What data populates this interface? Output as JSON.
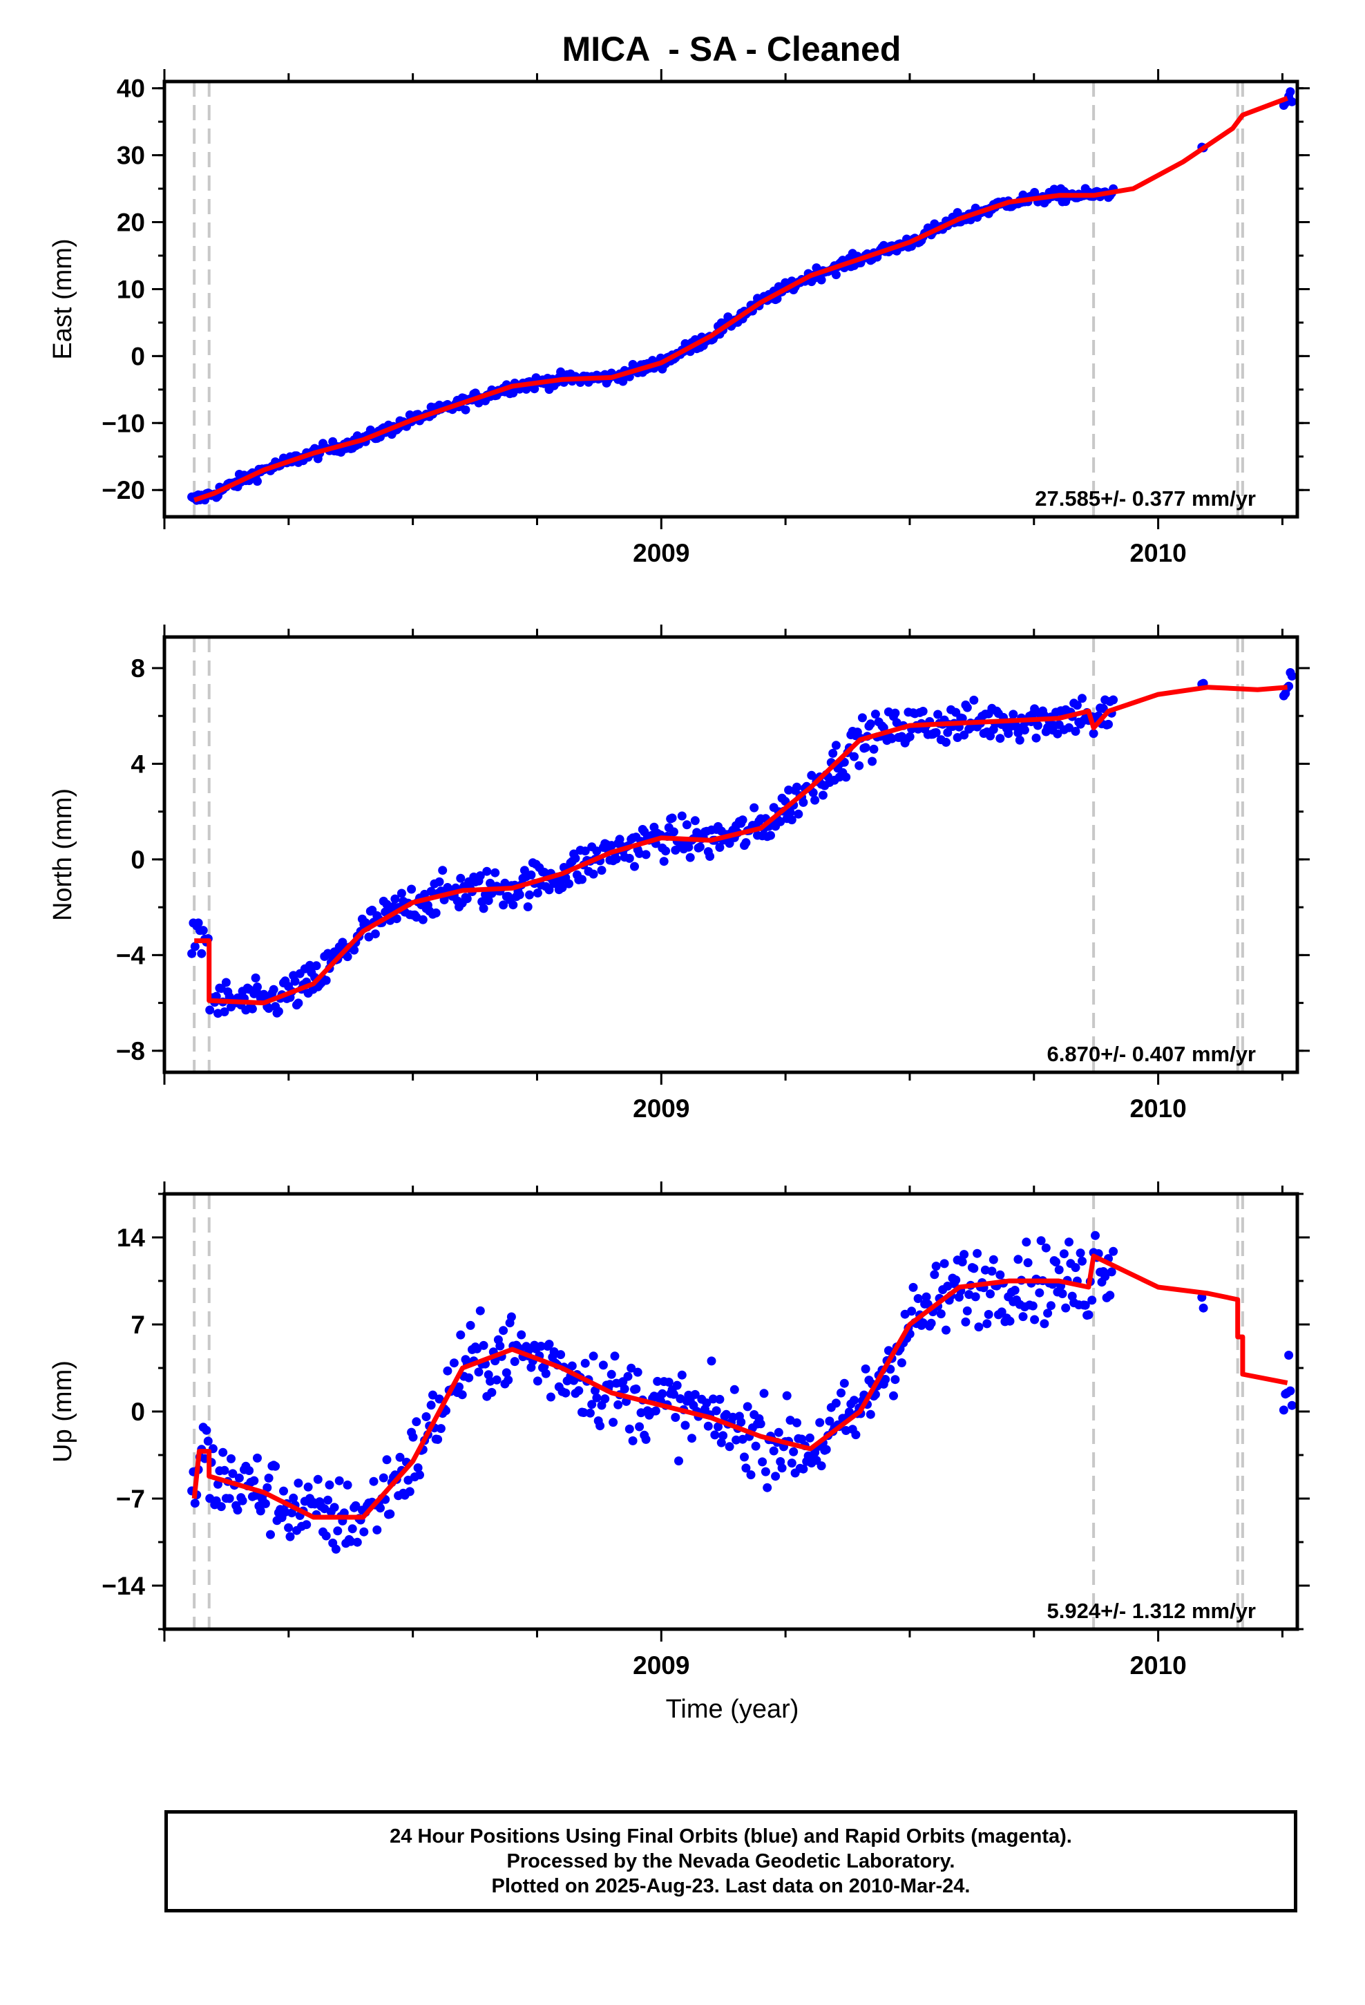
{
  "figure": {
    "title": "MICA  - SA - Cleaned",
    "footer": [
      "24 Hour Positions Using Final Orbits (blue) and Rapid Orbits (magenta).",
      "Processed by the Nevada Geodetic Laboratory.",
      "Plotted on 2025-Aug-23. Last data on 2010-Mar-24."
    ],
    "colors": {
      "data_points": "#0000ff",
      "model_line": "#ff0000",
      "event_lines": "#c8c8c8",
      "frame": "#000000"
    }
  },
  "chart_data": [
    {
      "type": "scatter",
      "component": "east",
      "ylabel": "East (mm)",
      "xlabel": "",
      "xlim": [
        2008.0,
        2010.28
      ],
      "ylim": [
        -24,
        41
      ],
      "yticks": [
        -20,
        -10,
        0,
        10,
        20,
        30,
        40
      ],
      "xticks": [
        2009,
        2010
      ],
      "rate": "27.585+/- 0.377 mm/yr",
      "event_lines": [
        2008.06,
        2008.09,
        2009.87,
        2010.16,
        2010.17
      ],
      "model": {
        "x": [
          2008.06,
          2008.1,
          2008.2,
          2008.3,
          2008.4,
          2008.5,
          2008.6,
          2008.7,
          2008.8,
          2008.9,
          2009.0,
          2009.1,
          2009.2,
          2009.3,
          2009.4,
          2009.5,
          2009.6,
          2009.7,
          2009.8,
          2009.87,
          2009.95,
          2010.05,
          2010.15,
          2010.17,
          2010.26
        ],
        "y": [
          -21.5,
          -20.5,
          -17,
          -14.5,
          -12.5,
          -9.5,
          -7,
          -4.5,
          -3.5,
          -3.2,
          -1,
          3,
          8,
          12,
          14.5,
          17,
          20.5,
          23,
          24,
          24,
          25,
          29,
          34,
          36,
          38.5
        ]
      },
      "noise": 0.9
    },
    {
      "type": "scatter",
      "component": "north",
      "ylabel": "North (mm)",
      "xlabel": "",
      "xlim": [
        2008.0,
        2010.28
      ],
      "ylim": [
        -8.9,
        9.3
      ],
      "yticks": [
        -8,
        -4,
        0,
        4,
        8
      ],
      "xticks": [
        2009,
        2010
      ],
      "rate": "6.870+/- 0.407 mm/yr",
      "event_lines": [
        2008.06,
        2008.09,
        2009.87,
        2010.16,
        2010.17
      ],
      "model": {
        "x": [
          2008.06,
          2008.09,
          2008.09,
          2008.2,
          2008.3,
          2008.4,
          2008.5,
          2008.6,
          2008.7,
          2008.8,
          2008.9,
          2009.0,
          2009.1,
          2009.2,
          2009.3,
          2009.4,
          2009.5,
          2009.6,
          2009.7,
          2009.8,
          2009.86,
          2009.87,
          2009.9,
          2010.0,
          2010.1,
          2010.2,
          2010.26
        ],
        "y": [
          -3.4,
          -3.4,
          -5.9,
          -6.0,
          -5.2,
          -3.0,
          -1.8,
          -1.3,
          -1.2,
          -0.6,
          0.3,
          0.9,
          0.8,
          1.3,
          3.0,
          5.0,
          5.6,
          5.7,
          5.8,
          5.9,
          6.2,
          5.5,
          6.2,
          6.9,
          7.2,
          7.1,
          7.2
        ]
      },
      "noise": 0.8
    },
    {
      "type": "scatter",
      "component": "up",
      "ylabel": "Up (mm)",
      "xlabel": "Time (year)",
      "xlim": [
        2008.0,
        2010.28
      ],
      "ylim": [
        -17.5,
        17.5
      ],
      "yticks": [
        -14,
        -7,
        0,
        7,
        14
      ],
      "xticks": [
        2009,
        2010
      ],
      "rate": "5.924+/- 1.312 mm/yr",
      "event_lines": [
        2008.06,
        2008.09,
        2009.87,
        2010.16,
        2010.17
      ],
      "model": {
        "x": [
          2008.06,
          2008.07,
          2008.09,
          2008.09,
          2008.2,
          2008.3,
          2008.4,
          2008.5,
          2008.6,
          2008.7,
          2008.8,
          2008.9,
          2009.0,
          2009.1,
          2009.2,
          2009.3,
          2009.4,
          2009.5,
          2009.6,
          2009.7,
          2009.8,
          2009.86,
          2009.87,
          2010.0,
          2010.1,
          2010.16,
          2010.16,
          2010.17,
          2010.17,
          2010.26
        ],
        "y": [
          -7.0,
          -3.2,
          -3.2,
          -5.2,
          -6.5,
          -8.5,
          -8.5,
          -4.0,
          3.5,
          5.0,
          3.5,
          1.5,
          0.5,
          -0.5,
          -2.0,
          -3.0,
          0.0,
          7.0,
          10.0,
          10.5,
          10.5,
          10.0,
          12.5,
          10.0,
          9.5,
          9.0,
          6.0,
          6.0,
          3.0,
          2.3
        ]
      },
      "noise": 3.0
    }
  ]
}
